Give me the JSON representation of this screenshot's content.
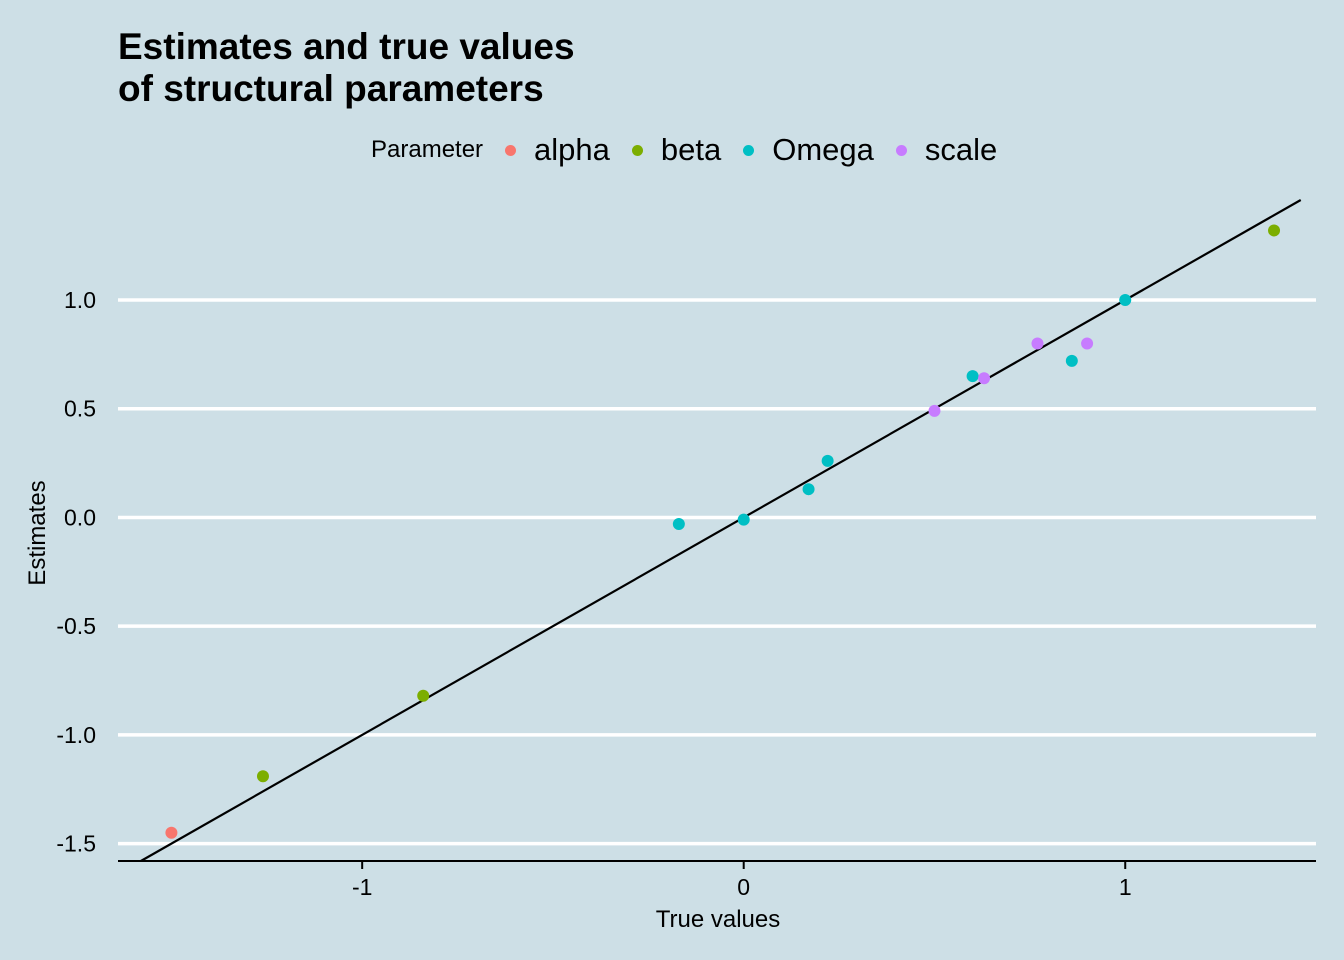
{
  "chart_data": {
    "type": "scatter",
    "title_lines": [
      "Estimates and true values",
      "of structural parameters"
    ],
    "xlabel": "True values",
    "ylabel": "Estimates",
    "legend_title": "Parameter",
    "legend_position": "top",
    "background_color": "#cddfe6",
    "gridlines": "horizontal major, white",
    "reference_line": {
      "type": "identity",
      "label": "y = x",
      "color": "#000000"
    },
    "xlim": [
      -1.64,
      1.5
    ],
    "ylim": [
      -1.58,
      1.46
    ],
    "x_ticks": [
      -1,
      0,
      1
    ],
    "x_tick_labels": [
      "-1",
      "0",
      "1"
    ],
    "y_ticks": [
      -1.5,
      -1.0,
      -0.5,
      0.0,
      0.5,
      1.0
    ],
    "y_tick_labels": [
      "-1.5",
      "-1.0",
      "-0.5",
      "0.0",
      "0.5",
      "1.0"
    ],
    "series": [
      {
        "name": "alpha",
        "color": "#f8766d",
        "points": [
          [
            -1.5,
            -1.45
          ]
        ]
      },
      {
        "name": "beta",
        "color": "#7cae00",
        "points": [
          [
            -1.26,
            -1.19
          ],
          [
            -0.84,
            -0.82
          ],
          [
            1.39,
            1.32
          ]
        ]
      },
      {
        "name": "Omega",
        "color": "#00bfc4",
        "points": [
          [
            -0.17,
            -0.03
          ],
          [
            0.0,
            -0.01
          ],
          [
            0.17,
            0.13
          ],
          [
            0.22,
            0.26
          ],
          [
            0.6,
            0.65
          ],
          [
            0.86,
            0.72
          ],
          [
            1.0,
            1.0
          ]
        ]
      },
      {
        "name": "scale",
        "color": "#c77cff",
        "points": [
          [
            0.5,
            0.49
          ],
          [
            0.63,
            0.64
          ],
          [
            0.77,
            0.8
          ],
          [
            0.9,
            0.8
          ]
        ]
      }
    ]
  }
}
